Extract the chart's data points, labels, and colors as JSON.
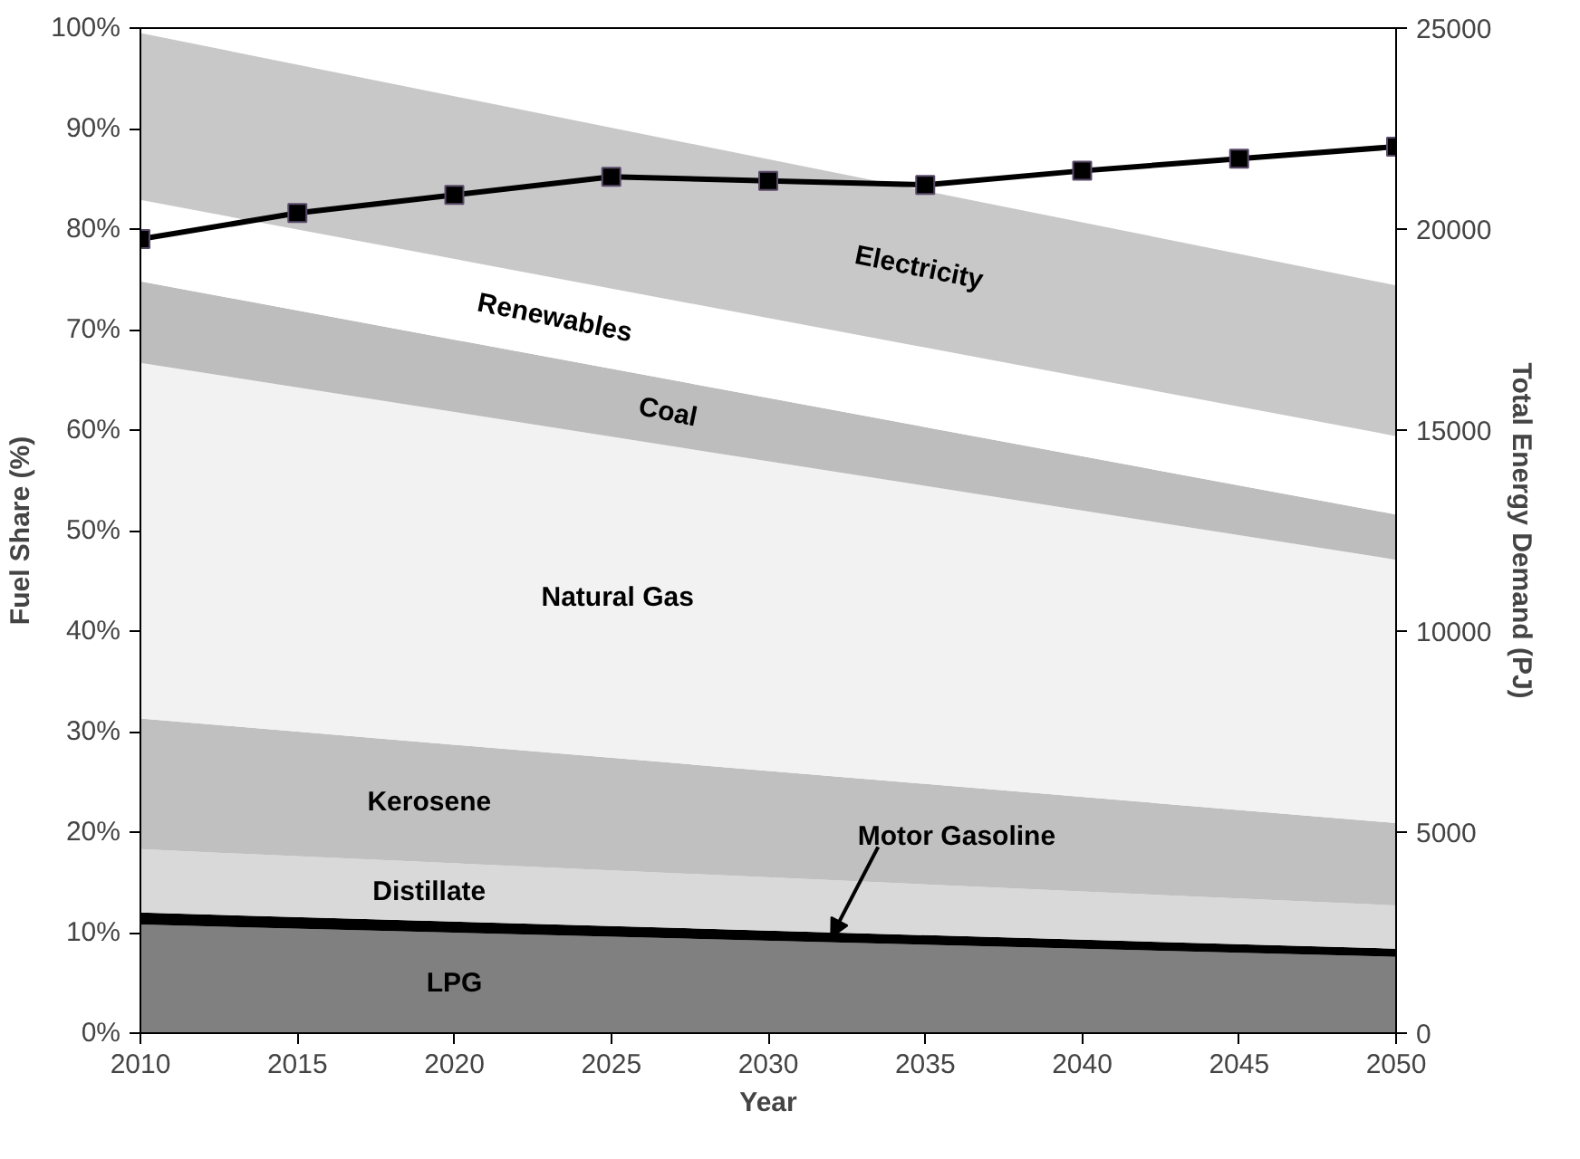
{
  "chart_data": {
    "type": "area",
    "stacked": true,
    "xlabel": "Year",
    "ylabel": "Fuel Share (%)",
    "y2label": "Total Energy Demand (PJ)",
    "xlim": [
      2010,
      2050
    ],
    "xticks": [
      2010,
      2015,
      2020,
      2025,
      2030,
      2035,
      2040,
      2045,
      2050
    ],
    "ylim": [
      0,
      100
    ],
    "yticks": [
      {
        "value": 0,
        "label": "0%"
      },
      {
        "value": 10,
        "label": "10%"
      },
      {
        "value": 20,
        "label": "20%"
      },
      {
        "value": 30,
        "label": "30%"
      },
      {
        "value": 40,
        "label": "40%"
      },
      {
        "value": 50,
        "label": "50%"
      },
      {
        "value": 60,
        "label": "60%"
      },
      {
        "value": 70,
        "label": "70%"
      },
      {
        "value": 80,
        "label": "80%"
      },
      {
        "value": 90,
        "label": "90%"
      },
      {
        "value": 100,
        "label": "100%"
      }
    ],
    "y2lim": [
      0,
      25000
    ],
    "y2ticks": [
      0,
      5000,
      10000,
      15000,
      20000,
      25000
    ],
    "grid": false,
    "series": [
      {
        "name": "LPG",
        "color": "#808080",
        "x": [
          2010,
          2050
        ],
        "values": [
          10.8,
          7.6
        ]
      },
      {
        "name": "Motor Gasoline",
        "color": "#000000",
        "x": [
          2010,
          2050
        ],
        "values": [
          1.2,
          0.8
        ]
      },
      {
        "name": "Distillate",
        "color": "#d9d9d9",
        "x": [
          2010,
          2050
        ],
        "values": [
          6.3,
          4.3
        ]
      },
      {
        "name": "Kerosene",
        "color": "#c0c0c0",
        "x": [
          2010,
          2050
        ],
        "values": [
          13.0,
          8.2
        ]
      },
      {
        "name": "Natural Gas",
        "color": "#f2f2f2",
        "x": [
          2010,
          2050
        ],
        "values": [
          35.4,
          26.2
        ]
      },
      {
        "name": "Coal",
        "color": "#bdbdbd",
        "x": [
          2010,
          2050
        ],
        "values": [
          8.1,
          4.5
        ]
      },
      {
        "name": "Renewables",
        "color": "#ffffff",
        "x": [
          2010,
          2050
        ],
        "values": [
          8.1,
          7.8
        ]
      },
      {
        "name": "Electricity",
        "color": "#c8c8c8",
        "x": [
          2010,
          2050
        ],
        "values": [
          16.6,
          15.0
        ]
      },
      {
        "type": "line",
        "axis": "y2",
        "marker": "square",
        "color": "#000000",
        "x": [
          2010,
          2015,
          2020,
          2025,
          2030,
          2035,
          2040,
          2045,
          2050
        ],
        "values": [
          19750,
          20400,
          20850,
          21300,
          21200,
          21100,
          21450,
          21750,
          22050
        ]
      }
    ]
  }
}
